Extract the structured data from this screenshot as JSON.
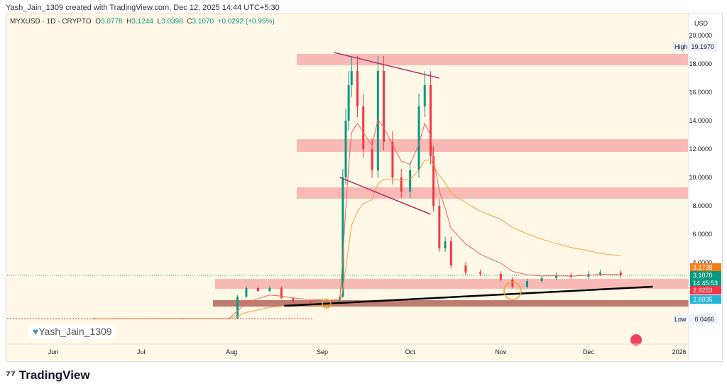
{
  "credit": "Yash_Jain_1309 created with TradingView.com, Dec 12, 2025 14:44 UTC+5:30",
  "legend": {
    "symbol": "MYXUSD · 1D · CRYPTO",
    "o_label": "O",
    "o": "3.0778",
    "h_label": "H",
    "h": "3.1244",
    "l_label": "L",
    "l": "3.0398",
    "c_label": "C",
    "c": "3.1070",
    "change": "+0.0292 (+0.95%)"
  },
  "watermark": "Yash_Jain_1309",
  "brand": "TradingView",
  "colors": {
    "up": "#089981",
    "down": "#f23645",
    "zone": "#f7a5a5",
    "band": "#b5655a"
  },
  "axis": {
    "currency": "USD",
    "high_label": "High",
    "high": "19.1970",
    "low_label": "Low",
    "low": "0.0466",
    "tags": [
      {
        "text": "3.1738",
        "color": "#f57f17"
      },
      {
        "text": "3.1070",
        "sub": "14:45:53",
        "color": "#089981"
      },
      {
        "text": "2.9253",
        "color": "#f23645"
      },
      {
        "text": "2.6935",
        "color": "#22b5d9"
      }
    ]
  },
  "chart_data": {
    "type": "candlestick",
    "y_ticks": [
      "20.0000",
      "18.0000",
      "16.0000",
      "14.0000",
      "12.0000",
      "10.0000",
      "8.0000",
      "6.0000",
      "4.0000"
    ],
    "ylim": [
      0,
      20.5
    ],
    "x_ticks": [
      {
        "date": "2025-06-01",
        "label": "Jun"
      },
      {
        "date": "2025-07-01",
        "label": "Jul"
      },
      {
        "date": "2025-08-01",
        "label": "Aug"
      },
      {
        "date": "2025-09-01",
        "label": "Sep"
      },
      {
        "date": "2025-10-01",
        "label": "Oct"
      },
      {
        "date": "2025-11-01",
        "label": "Nov"
      },
      {
        "date": "2025-12-01",
        "label": "Dec"
      },
      {
        "date": "2026-01-01",
        "label": "2026"
      }
    ],
    "closes": [
      [
        "2025-05-01",
        0.05
      ],
      [
        "2025-06-15",
        0.05
      ],
      [
        "2025-07-15",
        0.06
      ],
      [
        "2025-07-31",
        0.06
      ],
      [
        "2025-08-03",
        1.6
      ],
      [
        "2025-08-06",
        2.2
      ],
      [
        "2025-08-10",
        2.0
      ],
      [
        "2025-08-14",
        2.2
      ],
      [
        "2025-08-18",
        1.5
      ],
      [
        "2025-08-22",
        1.25
      ],
      [
        "2025-08-28",
        1.2
      ],
      [
        "2025-09-04",
        1.25
      ],
      [
        "2025-09-07",
        1.6
      ],
      [
        "2025-09-08",
        10
      ],
      [
        "2025-09-09",
        14
      ],
      [
        "2025-09-10",
        16.5
      ],
      [
        "2025-09-11",
        17.5
      ],
      [
        "2025-09-13",
        15
      ],
      [
        "2025-09-15",
        12
      ],
      [
        "2025-09-18",
        10.5
      ],
      [
        "2025-09-20",
        17.5
      ],
      [
        "2025-09-22",
        12.5
      ],
      [
        "2025-09-25",
        10
      ],
      [
        "2025-09-28",
        9
      ],
      [
        "2025-10-01",
        10.5
      ],
      [
        "2025-10-04",
        15
      ],
      [
        "2025-10-06",
        16.5
      ],
      [
        "2025-10-08",
        11.5
      ],
      [
        "2025-10-09",
        8
      ],
      [
        "2025-10-11",
        5
      ],
      [
        "2025-10-13",
        5.5
      ],
      [
        "2025-10-15",
        3.8
      ],
      [
        "2025-10-20",
        3.3
      ],
      [
        "2025-10-25",
        3.2
      ],
      [
        "2025-11-01",
        2.8
      ],
      [
        "2025-11-05",
        2.3
      ],
      [
        "2025-11-10",
        2.7
      ],
      [
        "2025-11-15",
        2.9
      ],
      [
        "2025-11-20",
        3.1
      ],
      [
        "2025-11-25",
        3.0
      ],
      [
        "2025-12-01",
        3.2
      ],
      [
        "2025-12-05",
        3.3
      ],
      [
        "2025-12-12",
        3.107
      ]
    ],
    "zones": [
      [
        17.9,
        18.7
      ],
      [
        11.8,
        12.7
      ],
      [
        8.5,
        9.3
      ],
      [
        2.15,
        2.85
      ]
    ],
    "band": [
      0.9,
      1.35
    ],
    "trendlines": [
      [
        [
          "2025-09-05",
          18.8
        ],
        [
          "2025-10-11",
          17.0
        ]
      ],
      [
        [
          "2025-09-07",
          10.0
        ],
        [
          "2025-10-08",
          7.4
        ]
      ],
      [
        [
          "2025-08-19",
          0.95
        ],
        [
          "2025-12-23",
          2.3
        ]
      ]
    ]
  }
}
